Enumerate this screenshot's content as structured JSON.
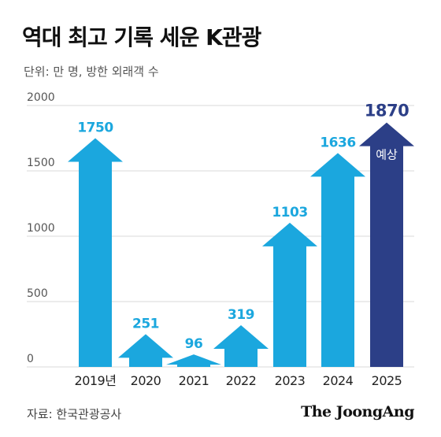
{
  "header": {
    "title": "역대 최고 기록 세운 K관광",
    "unit_note": "단위: 만 명, 방한 외래객 수"
  },
  "footer": {
    "source": "자료: 한국관광공사",
    "brand": "The JoongAng"
  },
  "colors": {
    "actual": "#1ba7de",
    "forecast": "#2c3f87",
    "label_actual": "#1ba7de",
    "label_forecast": "#2c3f87",
    "grid": "#d9d9d9",
    "axis_text": "#555555"
  },
  "chart_data": {
    "type": "bar",
    "categories": [
      "2019년",
      "2020",
      "2021",
      "2022",
      "2023",
      "2024",
      "2025"
    ],
    "values": [
      1750,
      251,
      96,
      319,
      1103,
      1636,
      1870
    ],
    "value_labels": [
      "1750",
      "251",
      "96",
      "319",
      "1103",
      "1636",
      "1870"
    ],
    "forecast_flags": [
      false,
      false,
      false,
      false,
      false,
      false,
      true
    ],
    "forecast_label": "예상",
    "title": "역대 최고 기록 세운 K관광",
    "ylabel": "단위: 만 명, 방한 외래객 수",
    "xlabel": "",
    "ylim": [
      0,
      2000
    ],
    "yticks": [
      0,
      500,
      1000,
      1500,
      2000
    ],
    "grid": true,
    "legend": "none"
  }
}
